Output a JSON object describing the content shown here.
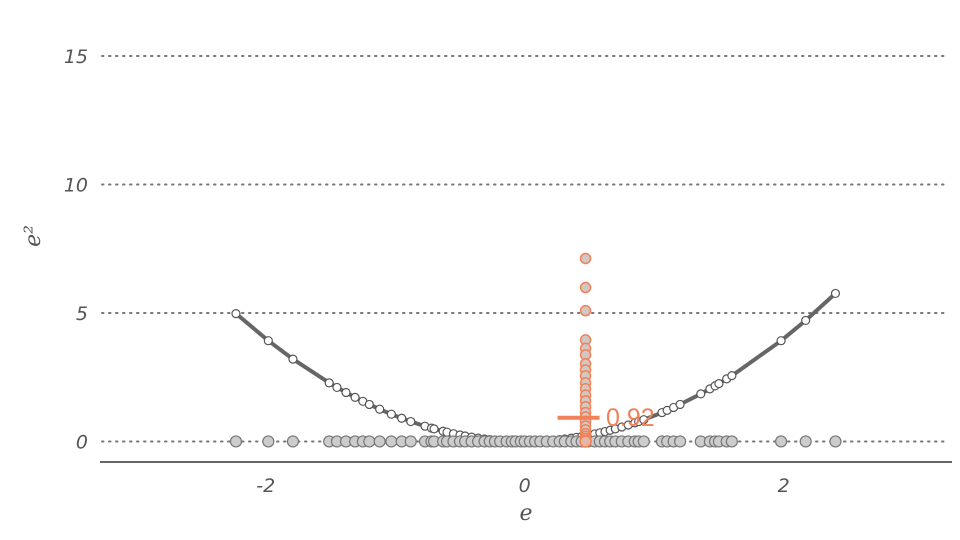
{
  "chart_data": {
    "type": "scatter",
    "title": "",
    "xlabel": "e",
    "ylabel": "e²",
    "xlim": [
      -3.28,
      3.3
    ],
    "ylim": [
      -0.8,
      16.4
    ],
    "x_ticks": [
      {
        "value": -2,
        "label": "-2"
      },
      {
        "value": 0,
        "label": "0"
      },
      {
        "value": 2,
        "label": "2"
      }
    ],
    "y_ticks": [
      {
        "value": 0,
        "label": "0"
      },
      {
        "value": 5,
        "label": "5"
      },
      {
        "value": 10,
        "label": "10"
      },
      {
        "value": 15,
        "label": "15"
      }
    ],
    "grid": "horizontal dotted",
    "colors": {
      "curve": "#666666",
      "residual_points": "#cccccc",
      "highlight": "#f08158",
      "axis": "#666666",
      "grid": "#777777"
    },
    "residuals_e": [
      -2.23,
      -1.98,
      -1.79,
      -1.51,
      -1.45,
      -1.38,
      -1.31,
      -1.25,
      -1.2,
      -1.12,
      -1.03,
      -0.95,
      -0.88,
      -0.77,
      -0.72,
      -0.7,
      -0.63,
      -0.6,
      -0.55,
      -0.5,
      -0.46,
      -0.41,
      -0.36,
      -0.31,
      -0.27,
      -0.23,
      -0.19,
      -0.14,
      -0.1,
      -0.07,
      -0.03,
      0.0,
      0.04,
      0.08,
      0.12,
      0.17,
      0.22,
      0.27,
      0.31,
      0.36,
      0.4,
      0.44,
      0.49,
      0.54,
      0.58,
      0.62,
      0.66,
      0.7,
      0.75,
      0.8,
      0.85,
      0.88,
      0.92,
      1.06,
      1.1,
      1.15,
      1.2,
      1.36,
      1.43,
      1.47,
      1.5,
      1.56,
      1.6,
      1.98,
      2.17,
      2.4
    ],
    "series": [
      {
        "type": "line",
        "x": [
          -2.23,
          -1.98,
          -1.79,
          -1.51,
          -1.45,
          -1.38,
          -1.31,
          -1.25,
          -1.2,
          -1.12,
          -1.03,
          -0.95,
          -0.88,
          -0.77,
          -0.72,
          -0.7,
          -0.63,
          -0.6,
          -0.55,
          -0.5,
          -0.46,
          -0.41,
          -0.36,
          -0.31,
          -0.27,
          -0.23,
          -0.19,
          -0.14,
          -0.1,
          -0.07,
          -0.03,
          0.0,
          0.04,
          0.08,
          0.12,
          0.17,
          0.22,
          0.27,
          0.31,
          0.36,
          0.4,
          0.44,
          0.49,
          0.54,
          0.58,
          0.62,
          0.66,
          0.7,
          0.75,
          0.8,
          0.85,
          0.88,
          0.92,
          1.06,
          1.1,
          1.15,
          1.2,
          1.36,
          1.43,
          1.47,
          1.5,
          1.56,
          1.6,
          1.98,
          2.17,
          2.4
        ]
      }
    ],
    "highlight": {
      "x": 0.47,
      "squared_residuals": [
        7.12,
        5.99,
        5.09,
        3.95,
        3.62,
        3.37,
        3.02,
        2.78,
        2.55,
        2.28,
        2.05,
        1.8,
        1.58,
        1.35,
        1.12,
        0.95,
        0.78,
        0.6,
        0.45,
        0.3,
        0.2,
        0.12,
        0.05,
        0.01
      ],
      "mean": 0.92,
      "label": "0.92"
    }
  }
}
